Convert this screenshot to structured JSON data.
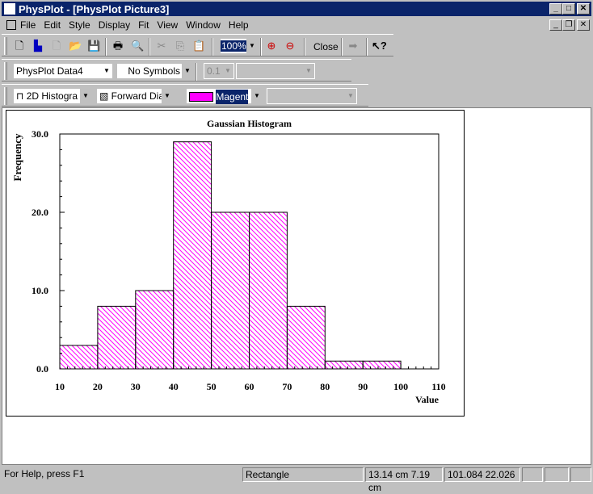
{
  "window": {
    "title": "PhysPlot - [PhysPlot Picture3]"
  },
  "menu": [
    "File",
    "Edit",
    "Style",
    "Display",
    "Fit",
    "View",
    "Window",
    "Help"
  ],
  "toolbar": {
    "zoom": "100%",
    "close_label": "Close"
  },
  "toolbar2": {
    "dataset": "PhysPlot Data4",
    "symbols": "No Symbols",
    "size": "0.1"
  },
  "toolbar3": {
    "plot_type": "2D Histogra",
    "fill_pattern": "Forward Dia",
    "color_name": "Magenta",
    "color_hex": "#ff00ff"
  },
  "status": {
    "help": "For Help, press F1",
    "tool": "Rectangle",
    "position_cm": "13.14 cm  7.19 cm",
    "value": "101.084 22.026"
  },
  "chart_data": {
    "type": "bar",
    "title": "Gaussian Histogram",
    "xlabel": "Value",
    "ylabel": "Frequency",
    "bin_edges": [
      10,
      20,
      30,
      40,
      50,
      60,
      70,
      80,
      90,
      100,
      110
    ],
    "values": [
      3,
      8,
      10,
      29,
      20,
      20,
      8,
      1,
      1,
      0
    ],
    "xlim": [
      10,
      110
    ],
    "ylim": [
      0,
      30
    ],
    "xticks": [
      "10",
      "20",
      "30",
      "40",
      "50",
      "60",
      "70",
      "80",
      "90",
      "100",
      "110"
    ],
    "yticks": [
      "0.0",
      "10.0",
      "20.0",
      "30.0"
    ],
    "fill": "forward diagonal hatch",
    "color": "#ff00ff"
  }
}
